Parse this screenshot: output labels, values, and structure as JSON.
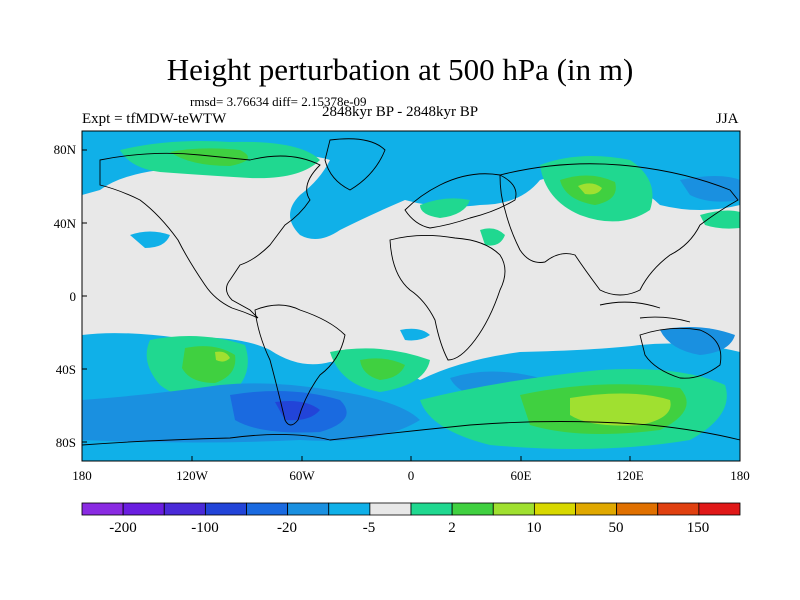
{
  "title": "Height perturbation at 500 hPa (in m)",
  "stats": "rmsd= 3.76634 diff= 2.15378e-09",
  "experiment": "Expt = tfMDW-teWTW",
  "period": "2848kyr BP - 2848kyr BP",
  "season": "JJA",
  "axes": {
    "lat_ticks": [
      "80N",
      "40N",
      "0",
      "40S",
      "80S"
    ],
    "lon_ticks": [
      "180",
      "120W",
      "60W",
      "0",
      "60E",
      "120E",
      "180"
    ]
  },
  "colorbar": {
    "colors": [
      "#8a2be2",
      "#6a1ee0",
      "#4a2ad8",
      "#2244d8",
      "#1a6ae0",
      "#1a90e0",
      "#10b0e8",
      "#e8e8e8",
      "#20d890",
      "#40d040",
      "#a0e030",
      "#d8d800",
      "#e0a800",
      "#e07000",
      "#e04010",
      "#e01818"
    ],
    "labels": [
      "-200",
      "-100",
      "-20",
      "-5",
      "2",
      "10",
      "50",
      "150"
    ]
  },
  "map_colors": {
    "background": "#e8e8e8",
    "cyan": "#10b0e8",
    "light_blue": "#1a90e0",
    "blue": "#1a6ae0",
    "dark_blue": "#2244d8",
    "green_cyan": "#20d890",
    "green": "#40d040",
    "lime": "#a0e030",
    "yellow": "#d8d800"
  }
}
